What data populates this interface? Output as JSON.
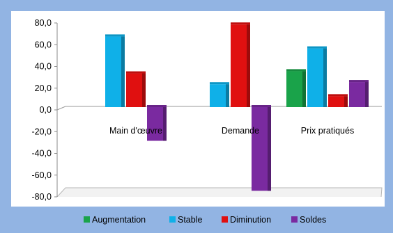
{
  "chart_data": {
    "type": "bar",
    "title": "",
    "xlabel": "",
    "ylabel": "",
    "categories": [
      "Main d'œuvre",
      "Demande",
      "Prix pratiqués"
    ],
    "series": [
      {
        "name": "Augmentation",
        "color": "#1aa34a",
        "values": [
          0,
          0,
          33
        ]
      },
      {
        "name": "Stable",
        "color": "#0fb0e8",
        "values": [
          65,
          21,
          54
        ]
      },
      {
        "name": "Diminution",
        "color": "#e01010",
        "values": [
          31,
          76,
          10
        ]
      },
      {
        "name": "Soldes",
        "color": "#7a2aa0",
        "values": [
          -31,
          -77,
          23
        ]
      }
    ],
    "ylim": [
      -80,
      80
    ],
    "yticks": [
      80,
      60,
      40,
      20,
      0,
      -20,
      -40,
      -60,
      -80
    ],
    "ytick_labels": [
      "80,0",
      "60,0",
      "40,0",
      "20,0",
      "0,0",
      "-20,0",
      "-40,0",
      "-60,0",
      "-80,0"
    ],
    "grid": false,
    "legend_position": "bottom"
  }
}
